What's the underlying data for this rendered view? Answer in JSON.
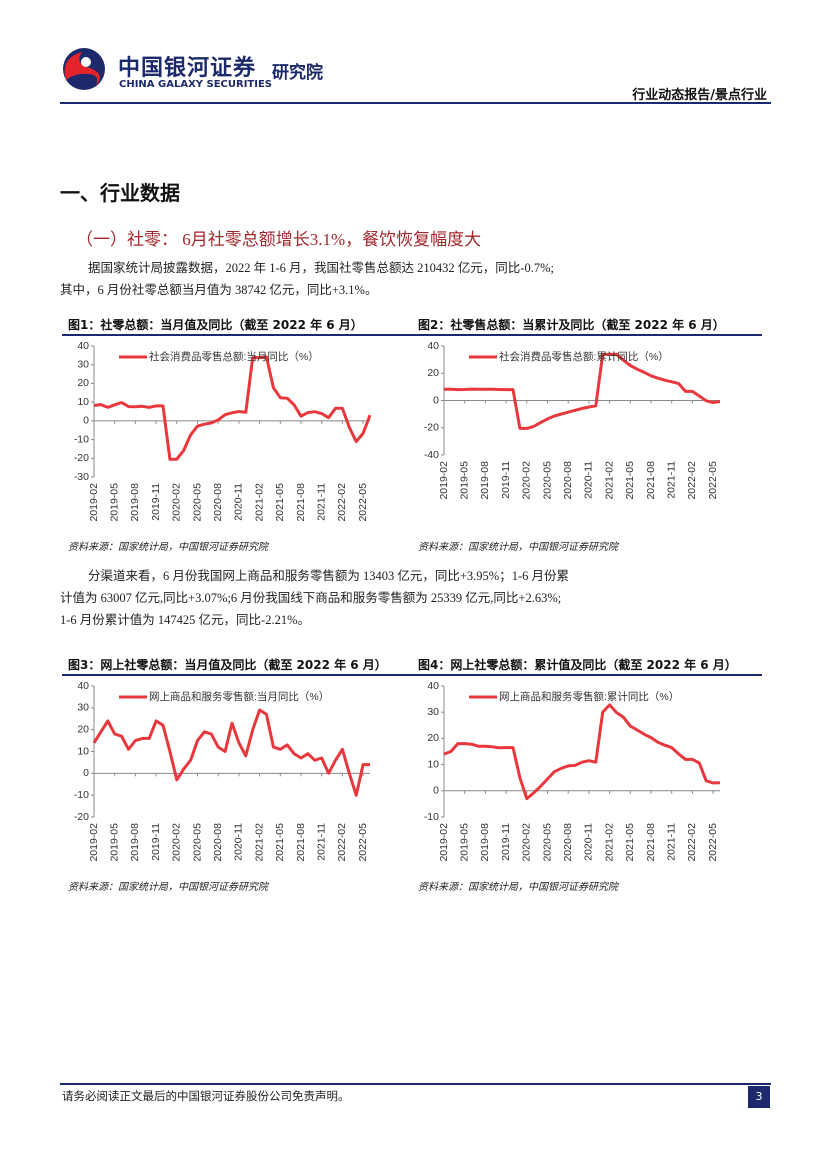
{
  "header": {
    "brand_cn": "中国银河证券",
    "brand_en": "CHINA GALAXY SECURITIES",
    "institute": "研究院",
    "report_type": "行业动态报告/景点行业"
  },
  "section_title": "一、行业数据",
  "subsection_title": "（一）社零：  6月社零总额增长3.1%，餐饮恢复幅度大",
  "paragraphs": [
    [
      "据国家统计局披露数据，2022 年 1-6 月，我国社零售总额达 210432 亿元，同比-0.7%;",
      "其中，6 月份社零总额当月值为 38742 亿元，同比+3.1%。"
    ],
    [
      "分渠道来看，6 月份我国网上商品和服务零售额为 13403 亿元，同比+3.95%；1-6 月份累",
      "计值为 63007 亿元,同比+3.07%;6 月份我国线下商品和服务零售额为 25339 亿元,同比+2.63%;",
      "1-6 月份累计值为 147425 亿元，同比-2.21%。"
    ]
  ],
  "chart_data": [
    {
      "type": "line",
      "title": "图1：社零总额：当月值及同比（截至 2022 年 6 月）",
      "source": "资料来源：国家统计局，中国银河证券研究院",
      "categories": [
        "2019-02",
        null,
        null,
        "2019-05",
        null,
        null,
        "2019-08",
        null,
        null,
        "2019-11",
        null,
        null,
        "2020-02",
        null,
        null,
        "2020-05",
        null,
        null,
        "2020-08",
        null,
        null,
        "2020-11",
        null,
        null,
        "2021-02",
        null,
        null,
        "2021-05",
        null,
        null,
        "2021-08",
        null,
        null,
        "2021-11",
        null,
        null,
        "2022-02",
        null,
        null,
        "2022-05",
        null
      ],
      "series": [
        {
          "name": "社会消费品零售总额:当月同比（%）",
          "color": "#e8383d",
          "values": [
            8.2,
            8.7,
            7.2,
            8.6,
            9.8,
            7.6,
            7.5,
            7.8,
            7.2,
            8.0,
            8.0,
            -20.5,
            -20.5,
            -15.8,
            -7.5,
            -2.8,
            -1.8,
            -1.1,
            0.5,
            3.3,
            4.3,
            5.0,
            4.6,
            33.8,
            33.8,
            34.2,
            17.7,
            12.4,
            12.1,
            8.5,
            2.5,
            4.4,
            4.9,
            3.9,
            1.7,
            6.7,
            6.7,
            -3.5,
            -11.1,
            -6.7,
            3.1
          ]
        }
      ],
      "ylim": [
        -30,
        40
      ],
      "yticks": [
        -30,
        -20,
        -10,
        0,
        10,
        20,
        30,
        40
      ],
      "legend": "upper left",
      "grid": false
    },
    {
      "type": "line",
      "title": "图2：社零售总额：当累计及同比（截至 2022 年 6 月）",
      "source": "资料来源：国家统计局，中国银河证券研究院",
      "categories": [
        "2019-02",
        null,
        null,
        "2019-05",
        null,
        null,
        "2019-08",
        null,
        null,
        "2019-11",
        null,
        null,
        "2020-02",
        null,
        null,
        "2020-05",
        null,
        null,
        "2020-08",
        null,
        null,
        "2020-11",
        null,
        null,
        "2021-02",
        null,
        null,
        "2021-05",
        null,
        null,
        "2021-08",
        null,
        null,
        "2021-11",
        null,
        null,
        "2022-02",
        null,
        null,
        "2022-05",
        null
      ],
      "series": [
        {
          "name": "社会消费品零售总额:累计同比（%）",
          "color": "#e8383d",
          "values": [
            8.2,
            8.3,
            8.0,
            8.1,
            8.4,
            8.3,
            8.2,
            8.2,
            8.1,
            8.0,
            8.0,
            -20.5,
            -20.5,
            -19.0,
            -16.2,
            -13.5,
            -11.4,
            -9.9,
            -8.6,
            -7.2,
            -5.9,
            -4.8,
            -3.9,
            33.8,
            33.8,
            33.9,
            29.6,
            25.7,
            23.0,
            20.7,
            18.1,
            16.4,
            14.9,
            13.7,
            12.5,
            6.7,
            6.7,
            3.3,
            -0.2,
            -1.5,
            -0.7
          ]
        }
      ],
      "ylim": [
        -40,
        40
      ],
      "yticks": [
        -40,
        -20,
        0,
        20,
        40
      ],
      "legend": "upper left",
      "grid": false
    },
    {
      "type": "line",
      "title": "图3：网上社零总额：当月值及同比（截至 2022 年 6 月）",
      "source": "资料来源：国家统计局，中国银河证券研究院",
      "categories": [
        "2019-02",
        null,
        null,
        "2019-05",
        null,
        null,
        "2019-08",
        null,
        null,
        "2019-11",
        null,
        null,
        "2020-02",
        null,
        null,
        "2020-05",
        null,
        null,
        "2020-08",
        null,
        null,
        "2020-11",
        null,
        null,
        "2021-02",
        null,
        null,
        "2021-05",
        null,
        null,
        "2021-08",
        null,
        null,
        "2021-11",
        null,
        null,
        "2022-02",
        null,
        null,
        "2022-05",
        null
      ],
      "series": [
        {
          "name": "网上商品和服务零售额:当月同比（%）",
          "color": "#e8383d",
          "values": [
            14,
            19,
            24,
            18,
            17,
            11,
            15,
            16,
            16,
            24,
            22,
            10,
            -3,
            2,
            6,
            15,
            19,
            18,
            12,
            10,
            23,
            14,
            8,
            20,
            29,
            27,
            12,
            11,
            13,
            9,
            7,
            9,
            6,
            7,
            0,
            6,
            11,
            0,
            -10,
            4,
            4
          ]
        }
      ],
      "ylim": [
        -20,
        40
      ],
      "yticks": [
        -20,
        -10,
        0,
        10,
        20,
        30,
        40
      ],
      "legend": "upper left",
      "grid": false
    },
    {
      "type": "line",
      "title": "图4：网上社零总额：累计值及同比（截至 2022 年 6 月）",
      "source": "资料来源：国家统计局，中国银河证券研究院",
      "categories": [
        "2019-02",
        null,
        null,
        "2019-05",
        null,
        null,
        "2019-08",
        null,
        null,
        "2019-11",
        null,
        null,
        "2020-02",
        null,
        null,
        "2020-05",
        null,
        null,
        "2020-08",
        null,
        null,
        "2020-11",
        null,
        null,
        "2021-02",
        null,
        null,
        "2021-05",
        null,
        null,
        "2021-08",
        null,
        null,
        "2021-11",
        null,
        null,
        "2022-02",
        null,
        null,
        "2022-05",
        null
      ],
      "series": [
        {
          "name": "网上商品和服务零售额:累计同比（%）",
          "color": "#e8383d",
          "values": [
            14,
            15,
            18,
            18,
            17.8,
            17,
            17,
            16.8,
            16.4,
            16.5,
            16.5,
            5,
            -3,
            -0.8,
            1.7,
            4.5,
            7.3,
            8.6,
            9.5,
            9.7,
            10.9,
            11.5,
            10.9,
            30,
            32.8,
            29.9,
            28.1,
            24.7,
            23.2,
            21.6,
            20.3,
            18.5,
            17.4,
            16.5,
            14.1,
            12,
            12,
            10.6,
            3.8,
            3,
            3.1
          ]
        }
      ],
      "ylim": [
        -10,
        40
      ],
      "yticks": [
        -10,
        0,
        10,
        20,
        30,
        40
      ],
      "legend": "upper left",
      "grid": false
    }
  ],
  "footer": {
    "disclaimer": "请务必阅读正文最后的中国银河证券股份公司免责声明。",
    "page": "3"
  }
}
